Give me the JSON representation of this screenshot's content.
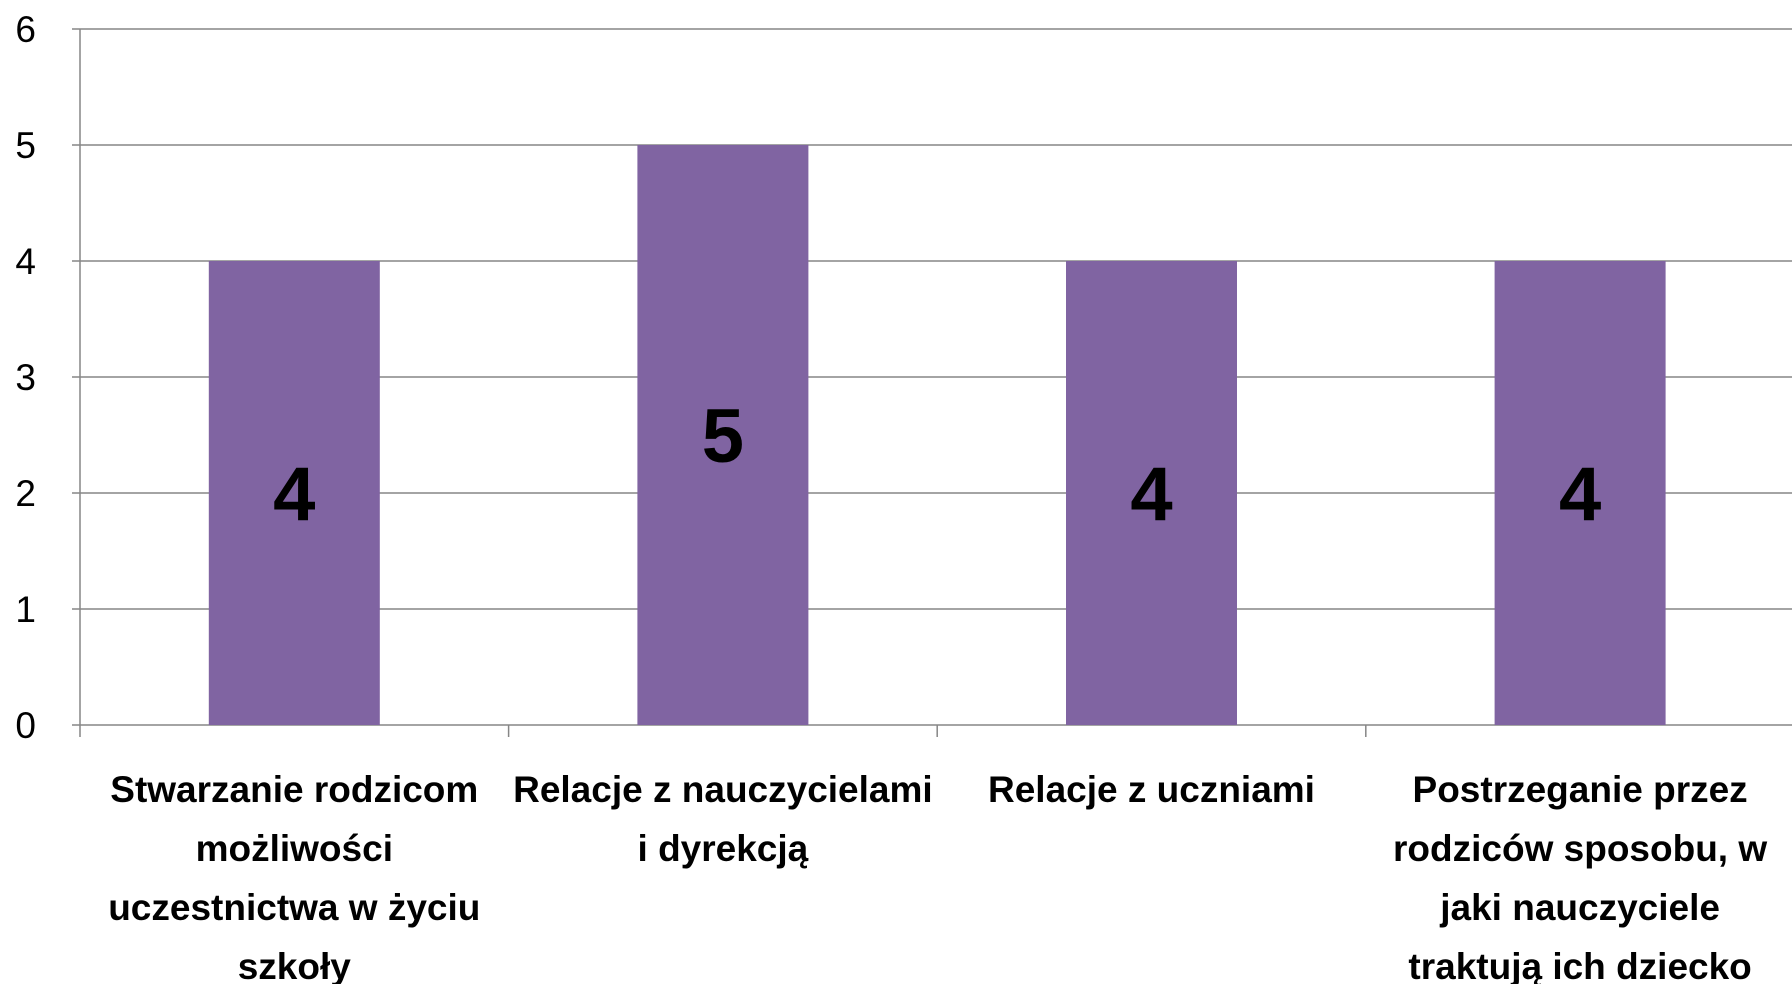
{
  "chart_data": {
    "type": "bar",
    "categories": [
      "Stwarzanie rodzicom możliwości uczestnictwa w życiu szkoły",
      "Relacje z nauczycielami i dyrekcją",
      "Relacje z uczniami",
      "Postrzeganie przez rodziców sposobu, w jaki nauczyciele traktują ich dziecko"
    ],
    "values": [
      4,
      5,
      4,
      4
    ],
    "color": "#8064a2",
    "ylim": [
      0,
      6
    ],
    "yticks": [
      0,
      1,
      2,
      3,
      4,
      5,
      6
    ],
    "grid": true
  }
}
